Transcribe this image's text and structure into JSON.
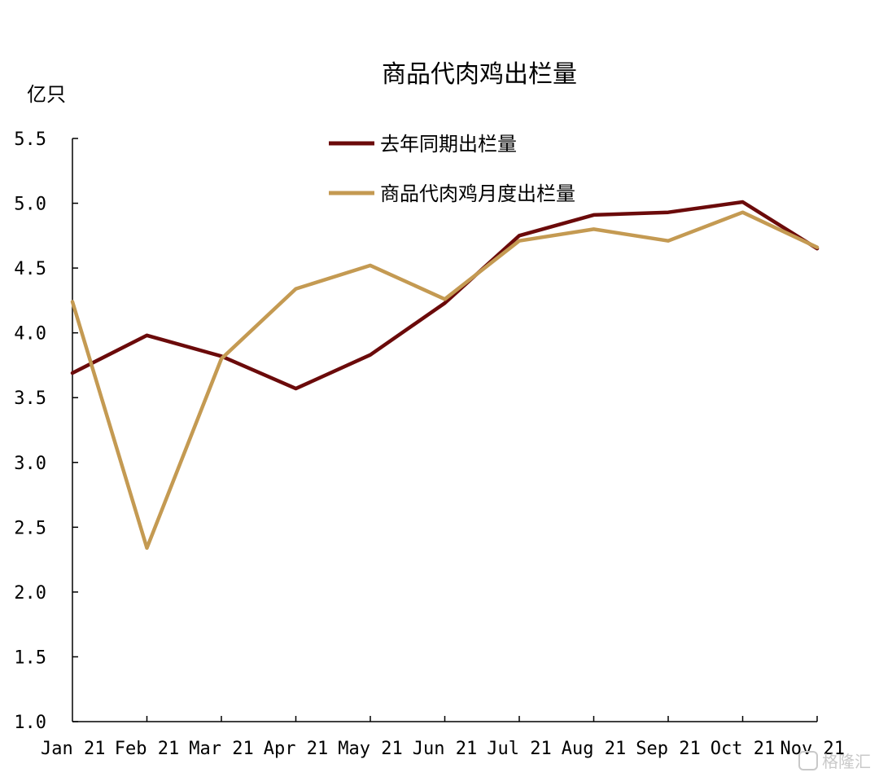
{
  "chart_data": {
    "type": "line",
    "title": "商品代肉鸡出栏量",
    "unit": "亿只",
    "categories": [
      "Jan 21",
      "Feb 21",
      "Mar 21",
      "Apr 21",
      "May 21",
      "Jun 21",
      "Jul 21",
      "Aug 21",
      "Sep 21",
      "Oct 21",
      "Nov 21"
    ],
    "ylim": [
      1.0,
      5.5
    ],
    "yticks": [
      "5.5",
      "5.0",
      "4.5",
      "4.0",
      "3.5",
      "3.0",
      "2.5",
      "2.0",
      "1.5",
      "1.0"
    ],
    "legend_position": "top-center",
    "grid": false,
    "series": [
      {
        "name": "去年同期出栏量",
        "color": "#6b0a0a",
        "values": [
          3.69,
          3.98,
          3.82,
          3.57,
          3.83,
          4.23,
          4.75,
          4.91,
          4.93,
          5.01,
          4.65
        ]
      },
      {
        "name": "商品代肉鸡月度出栏量",
        "color": "#c49a52",
        "values": [
          4.24,
          2.34,
          3.8,
          4.34,
          4.52,
          4.26,
          4.71,
          4.8,
          4.71,
          4.93,
          4.66
        ]
      }
    ]
  },
  "watermark": "格隆汇"
}
